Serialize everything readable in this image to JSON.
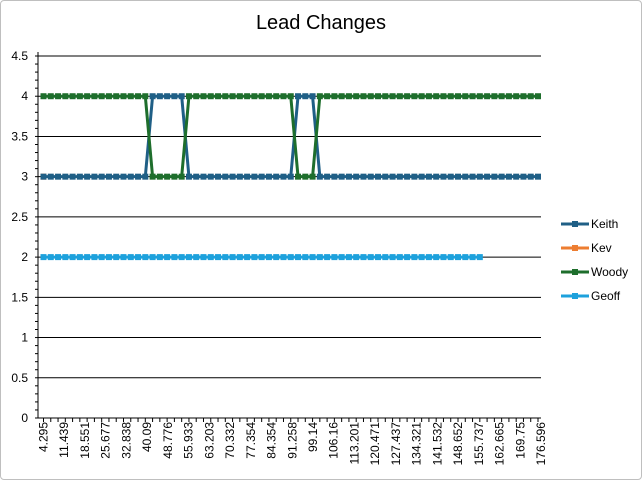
{
  "chart_data": {
    "type": "line",
    "title": "Lead Changes",
    "xlabel": "",
    "ylabel": "",
    "ylim": [
      0,
      4.5
    ],
    "y_ticks": [
      "0",
      "0.5",
      "1",
      "1.5",
      "2",
      "2.5",
      "3",
      "3.5",
      "4",
      "4.5"
    ],
    "x_tick_labels": [
      "4.295",
      "11.439",
      "18.551",
      "25.677",
      "32.838",
      "40.09",
      "48.776",
      "55.933",
      "63.203",
      "70.332",
      "77.354",
      "84.354",
      "91.258",
      "99.14",
      "106.16",
      "113.201",
      "120.471",
      "127.437",
      "134.321",
      "141.532",
      "148.652",
      "155.737",
      "162.665",
      "169.75",
      "176.596"
    ],
    "grid": true,
    "legend_position": "right",
    "series": [
      {
        "name": "Keith",
        "color": "#1f5f86",
        "values": [
          3,
          3,
          3,
          3,
          3,
          3,
          3,
          3,
          3,
          3,
          3,
          3,
          3,
          3,
          3,
          4,
          4,
          4,
          4,
          4,
          3,
          3,
          3,
          3,
          3,
          3,
          3,
          3,
          3,
          3,
          3,
          3,
          3,
          3,
          3,
          4,
          4,
          4,
          3,
          3,
          3,
          3,
          3,
          3,
          3,
          3,
          3,
          3,
          3,
          3,
          3,
          3,
          3,
          3,
          3,
          3,
          3,
          3,
          3,
          3,
          3,
          3,
          3,
          3,
          3,
          3,
          3,
          3,
          3
        ]
      },
      {
        "name": "Kev",
        "color": "#ed7d31",
        "values": [
          3
        ]
      },
      {
        "name": "Woody",
        "color": "#1e6e2c",
        "values": [
          4,
          4,
          4,
          4,
          4,
          4,
          4,
          4,
          4,
          4,
          4,
          4,
          4,
          4,
          4,
          3,
          3,
          3,
          3,
          3,
          4,
          4,
          4,
          4,
          4,
          4,
          4,
          4,
          4,
          4,
          4,
          4,
          4,
          4,
          4,
          3,
          3,
          3,
          4,
          4,
          4,
          4,
          4,
          4,
          4,
          4,
          4,
          4,
          4,
          4,
          4,
          4,
          4,
          4,
          4,
          4,
          4,
          4,
          4,
          4,
          4,
          4,
          4,
          4,
          4,
          4,
          4,
          4,
          4
        ]
      },
      {
        "name": "Geoff",
        "color": "#1da1dc",
        "values": [
          2,
          2,
          2,
          2,
          2,
          2,
          2,
          2,
          2,
          2,
          2,
          2,
          2,
          2,
          2,
          2,
          2,
          2,
          2,
          2,
          2,
          2,
          2,
          2,
          2,
          2,
          2,
          2,
          2,
          2,
          2,
          2,
          2,
          2,
          2,
          2,
          2,
          2,
          2,
          2,
          2,
          2,
          2,
          2,
          2,
          2,
          2,
          2,
          2,
          2,
          2,
          2,
          2,
          2,
          2,
          2,
          2,
          2,
          2,
          2,
          2
        ]
      }
    ]
  }
}
